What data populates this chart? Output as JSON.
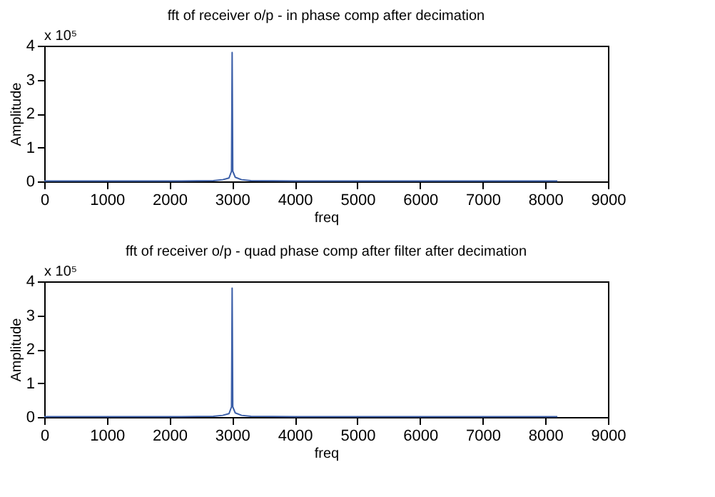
{
  "chart_data": [
    {
      "type": "line",
      "title": "fft of receiver o/p - in phase comp after decimation",
      "xlabel": "freq",
      "ylabel": "Amplitude",
      "annotations": [
        "x 10⁵"
      ],
      "x": [
        0,
        1000,
        2000,
        2700,
        2850,
        2950,
        2990,
        3000,
        3010,
        3050,
        3150,
        3300,
        4000,
        6000,
        8192
      ],
      "series": [
        {
          "color": "#3a5ea8",
          "values": [
            0.01,
            0.01,
            0.01,
            0.02,
            0.05,
            0.1,
            0.3,
            3.8,
            0.3,
            0.12,
            0.05,
            0.02,
            0.01,
            0.01,
            0.01
          ]
        }
      ],
      "xlim": [
        0,
        9000
      ],
      "xticks": [
        0,
        1000,
        2000,
        3000,
        4000,
        5000,
        6000,
        7000,
        8000,
        9000
      ],
      "ylim": [
        0,
        4
      ],
      "yticks": [
        0,
        1,
        2,
        3,
        4
      ],
      "grid": false
    },
    {
      "type": "line",
      "title": "fft of receiver o/p - quad phase comp after filter after decimation",
      "xlabel": "freq",
      "ylabel": "Amplitude",
      "annotations": [
        "x 10⁵"
      ],
      "x": [
        0,
        1000,
        2000,
        2700,
        2850,
        2950,
        2990,
        3000,
        3010,
        3050,
        3150,
        3300,
        4000,
        6000,
        8192
      ],
      "series": [
        {
          "color": "#3a5ea8",
          "values": [
            0.01,
            0.01,
            0.01,
            0.02,
            0.05,
            0.1,
            0.3,
            3.8,
            0.3,
            0.12,
            0.05,
            0.02,
            0.01,
            0.01,
            0.01
          ]
        }
      ],
      "xlim": [
        0,
        9000
      ],
      "xticks": [
        0,
        1000,
        2000,
        3000,
        4000,
        5000,
        6000,
        7000,
        8000,
        9000
      ],
      "ylim": [
        0,
        4
      ],
      "yticks": [
        0,
        1,
        2,
        3,
        4
      ],
      "grid": false
    }
  ]
}
